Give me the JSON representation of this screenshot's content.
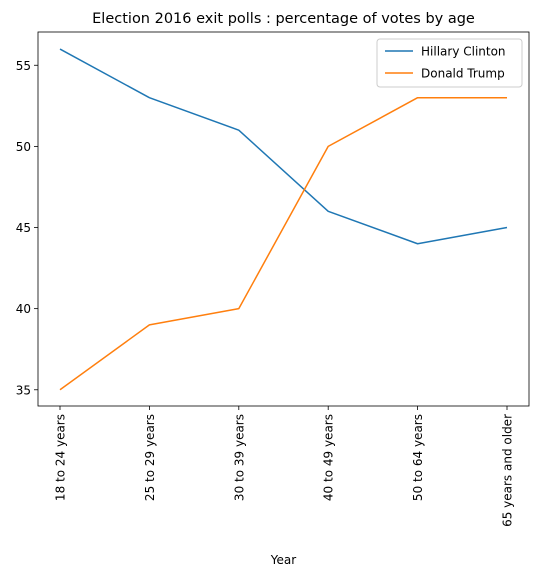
{
  "chart_data": {
    "type": "line",
    "title": "Election 2016 exit polls : percentage of votes by age",
    "xlabel": "Year",
    "ylabel": "",
    "categories": [
      "18 to 24 years",
      "25 to 29 years",
      "30 to 39 years",
      "40 to 49 years",
      "50 to 64 years",
      "65 years and older"
    ],
    "series": [
      {
        "name": "Hillary Clinton",
        "color": "#1f77b4",
        "values": [
          56,
          53,
          51,
          46,
          44,
          45
        ]
      },
      {
        "name": "Donald Trump",
        "color": "#ff7f0e",
        "values": [
          35,
          39,
          40,
          50,
          53,
          53
        ]
      }
    ],
    "ylim": [
      34.0,
      57.05
    ],
    "yticks": [
      35,
      40,
      45,
      50,
      55
    ],
    "legend": "top-right",
    "grid": false
  }
}
